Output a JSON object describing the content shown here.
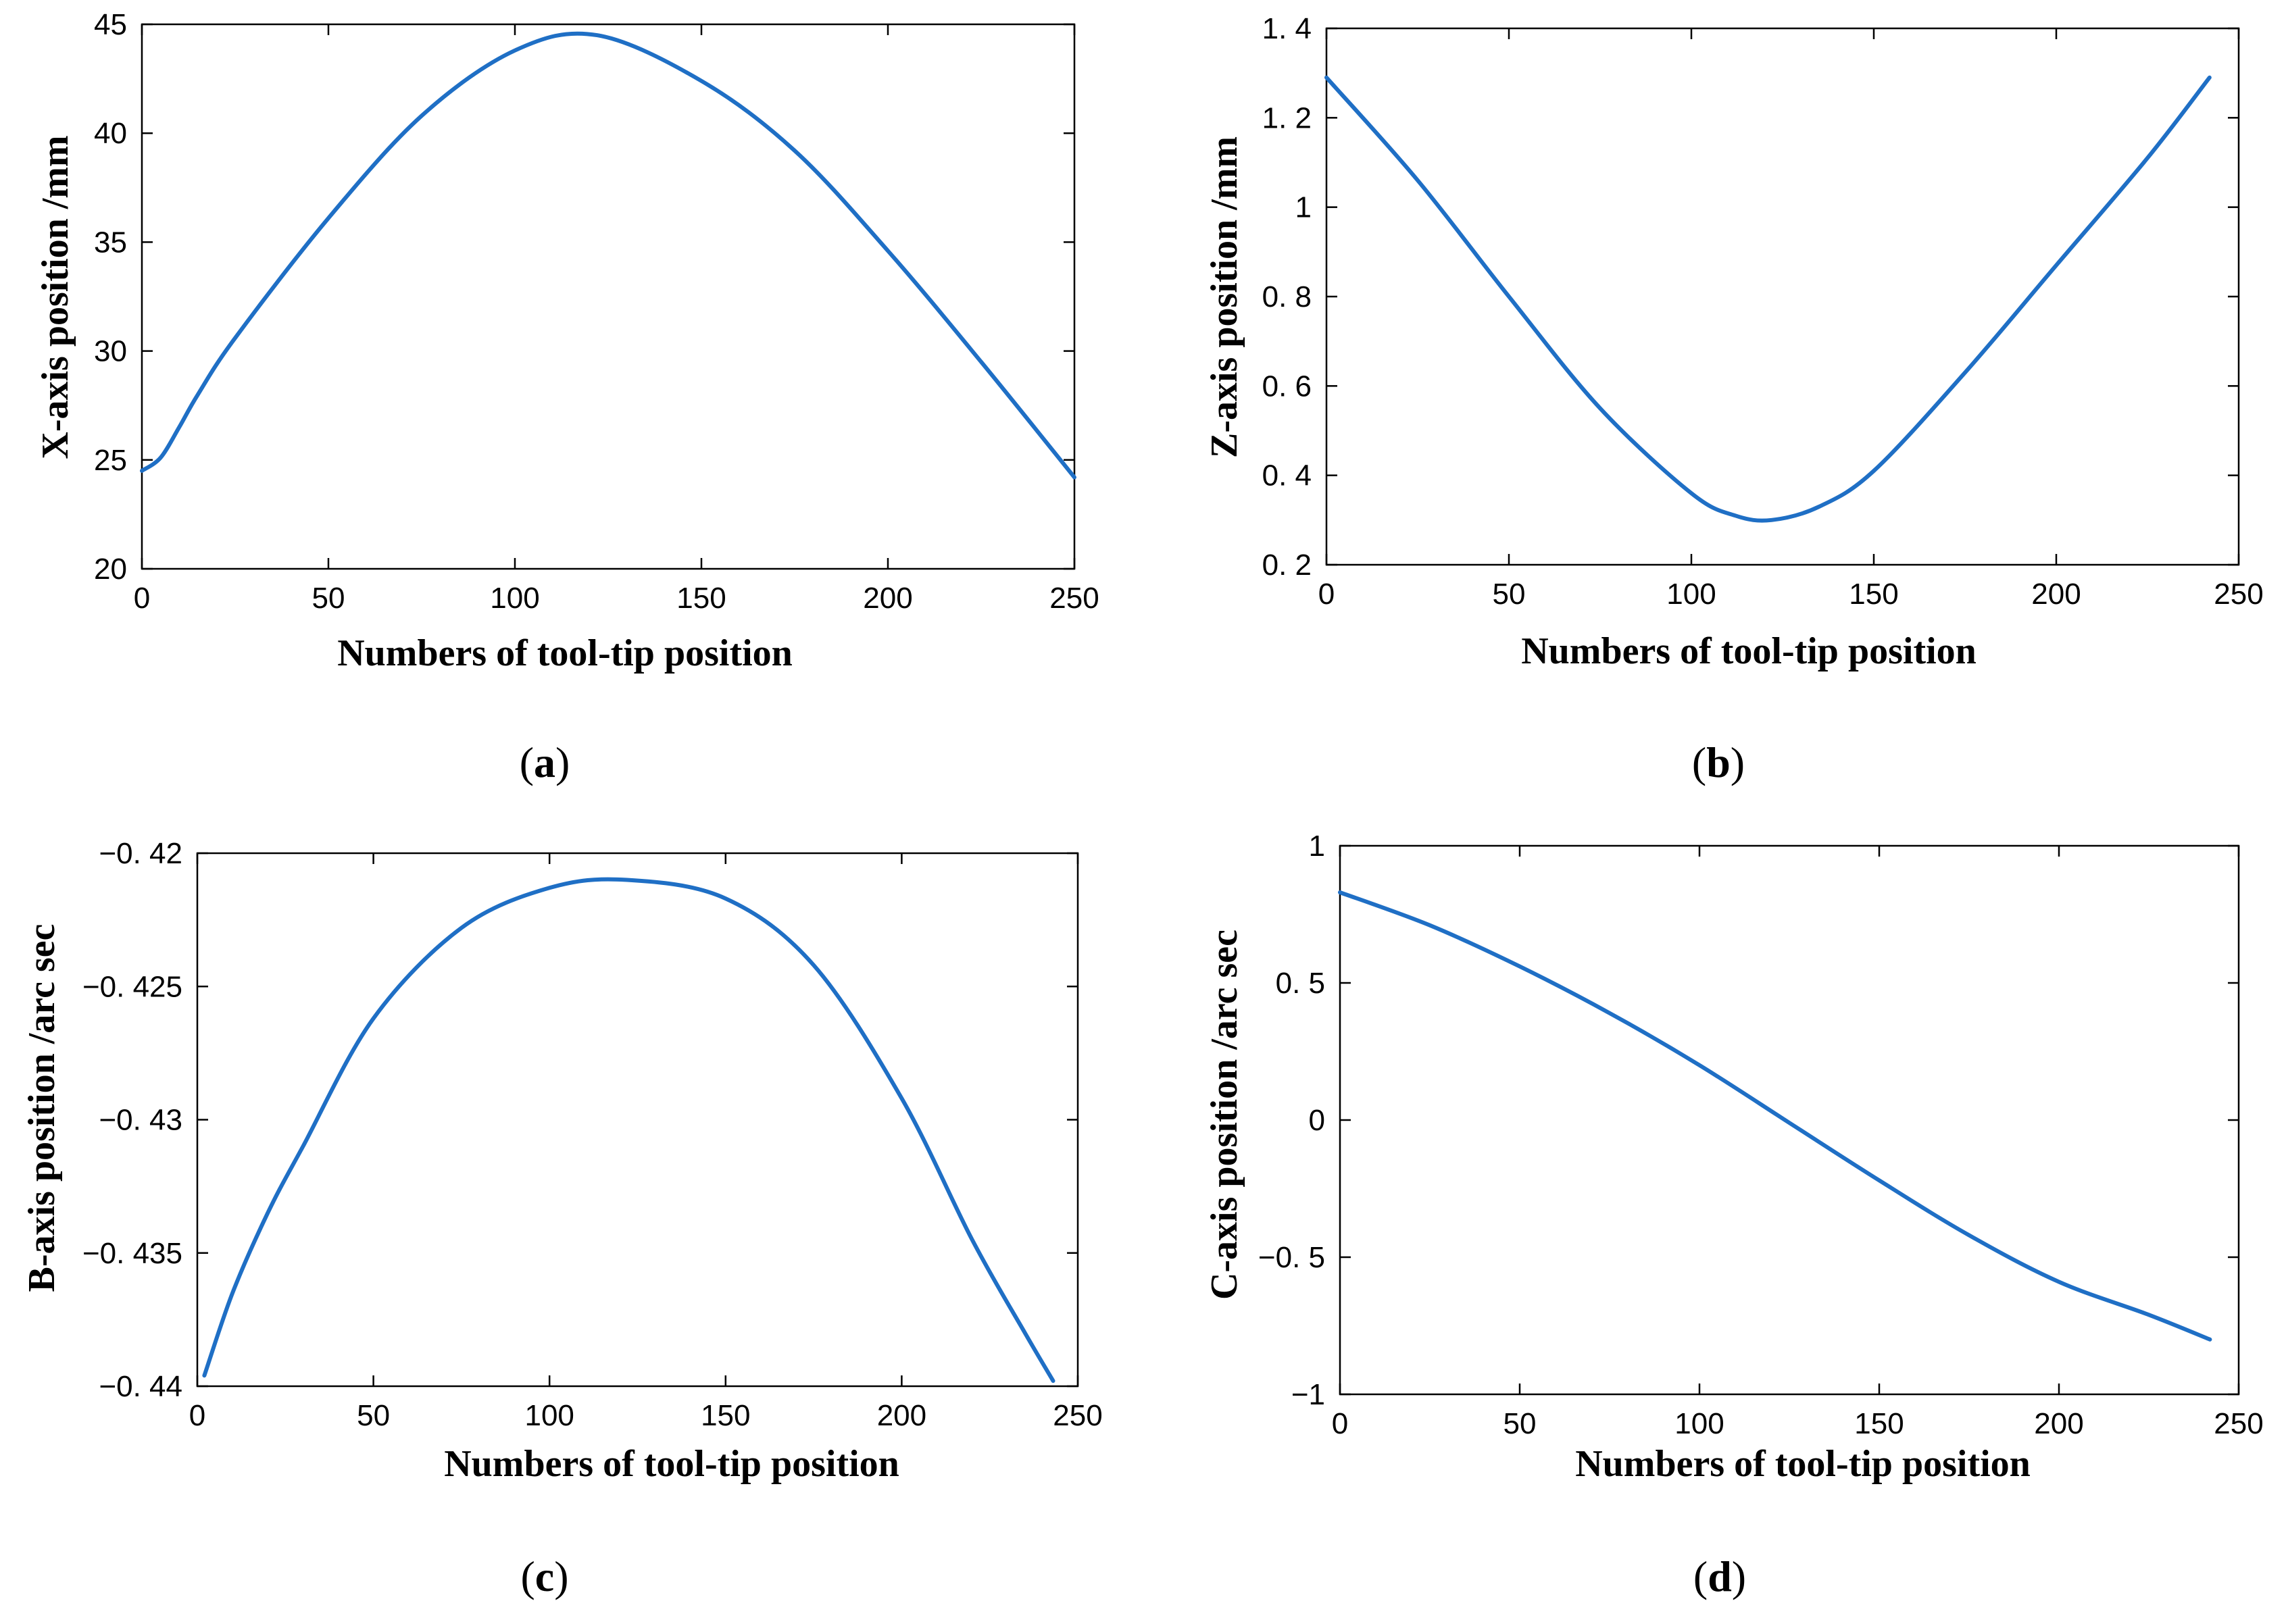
{
  "line_color": "#1f6fc5",
  "chart_data": [
    {
      "type": "line",
      "panel_label": "a",
      "title": "",
      "xlabel": "Numbers of tool-tip position",
      "ylabel": "X-axis position /mm",
      "xlim": [
        0,
        250
      ],
      "ylim": [
        20,
        45
      ],
      "xticks": [
        0,
        50,
        100,
        150,
        200,
        250
      ],
      "yticks": [
        20,
        25,
        30,
        35,
        40,
        45
      ],
      "xtick_labels": [
        "0",
        "50",
        "100",
        "150",
        "200",
        "250"
      ],
      "ytick_labels": [
        "20",
        "25",
        "30",
        "35",
        "40",
        "45"
      ],
      "series": [
        {
          "name": "X-axis",
          "x": [
            0,
            5,
            10,
            15,
            25,
            50,
            75,
            100,
            122,
            150,
            175,
            200,
            225,
            250
          ],
          "y": [
            24.5,
            25.1,
            26.5,
            28.0,
            30.6,
            36.1,
            40.8,
            43.8,
            44.5,
            42.4,
            39.2,
            34.6,
            29.5,
            24.2
          ]
        }
      ]
    },
    {
      "type": "line",
      "panel_label": "b",
      "title": "",
      "xlabel": "Numbers of tool-tip position",
      "ylabel": "Z-axis position /mm",
      "xlim": [
        0,
        250
      ],
      "ylim": [
        0.2,
        1.4
      ],
      "xticks": [
        0,
        50,
        100,
        150,
        200,
        250
      ],
      "yticks": [
        0.2,
        0.4,
        0.6,
        0.8,
        1.0,
        1.2,
        1.4
      ],
      "xtick_labels": [
        "0",
        "50",
        "100",
        "150",
        "200",
        "250"
      ],
      "ytick_labels": [
        "0. 2",
        "0. 4",
        "0. 6",
        "0. 8",
        "1",
        "1. 2",
        "1. 4"
      ],
      "series": [
        {
          "name": "Z-axis",
          "x": [
            0,
            25,
            50,
            75,
            100,
            112,
            122,
            135,
            150,
            175,
            200,
            225,
            242
          ],
          "y": [
            1.29,
            1.06,
            0.8,
            0.55,
            0.36,
            0.31,
            0.3,
            0.33,
            0.41,
            0.63,
            0.87,
            1.11,
            1.29
          ]
        }
      ]
    },
    {
      "type": "line",
      "panel_label": "c",
      "title": "",
      "xlabel": "Numbers of tool-tip position",
      "ylabel": "B-axis position /arc sec",
      "xlim": [
        0,
        250
      ],
      "ylim": [
        -0.44,
        -0.42
      ],
      "xticks": [
        0,
        50,
        100,
        150,
        200,
        250
      ],
      "yticks": [
        -0.44,
        -0.435,
        -0.43,
        -0.425,
        -0.42
      ],
      "xtick_labels": [
        "0",
        "50",
        "100",
        "150",
        "200",
        "250"
      ],
      "ytick_labels": [
        "−0. 44",
        "−0. 435",
        "−0. 43",
        "−0. 425",
        "−0. 42"
      ],
      "series": [
        {
          "name": "B-axis",
          "x": [
            2,
            10,
            20,
            30,
            50,
            75,
            100,
            122,
            150,
            175,
            200,
            220,
            235,
            243
          ],
          "y": [
            -0.4396,
            -0.4365,
            -0.4335,
            -0.431,
            -0.4262,
            -0.4228,
            -0.4213,
            -0.421,
            -0.4217,
            -0.4242,
            -0.4292,
            -0.4345,
            -0.438,
            -0.4398
          ]
        }
      ]
    },
    {
      "type": "line",
      "panel_label": "d",
      "title": "",
      "xlabel": "Numbers of tool-tip position",
      "ylabel": "C-axis position /arc sec",
      "xlim": [
        0,
        250
      ],
      "ylim": [
        -1,
        1
      ],
      "xticks": [
        0,
        50,
        100,
        150,
        200,
        250
      ],
      "yticks": [
        -1,
        -0.5,
        0,
        0.5,
        1
      ],
      "xtick_labels": [
        "0",
        "50",
        "100",
        "150",
        "200",
        "250"
      ],
      "ytick_labels": [
        "−1",
        "−0. 5",
        "0",
        "0. 5",
        "1"
      ],
      "series": [
        {
          "name": "C-axis",
          "x": [
            0,
            25,
            50,
            75,
            100,
            125,
            150,
            175,
            200,
            225,
            242
          ],
          "y": [
            0.83,
            0.71,
            0.56,
            0.39,
            0.2,
            -0.01,
            -0.22,
            -0.42,
            -0.59,
            -0.71,
            -0.8
          ]
        }
      ]
    }
  ],
  "captions": [
    {
      "open": "(",
      "letter": "a",
      "close": ")"
    },
    {
      "open": "(",
      "letter": "b",
      "close": ")"
    },
    {
      "open": "(",
      "letter": "c",
      "close": ")"
    },
    {
      "open": "(",
      "letter": "d",
      "close": ")"
    }
  ]
}
